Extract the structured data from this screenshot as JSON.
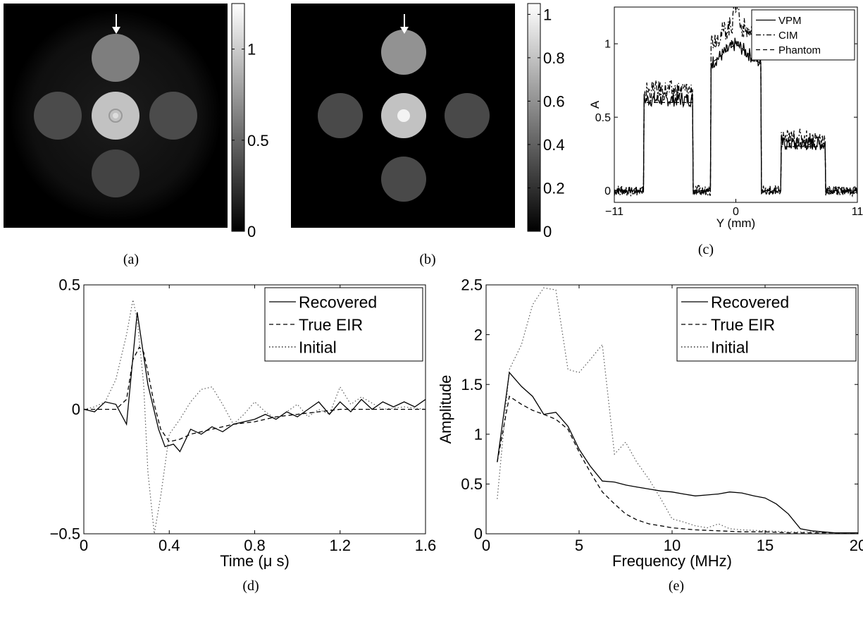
{
  "images": {
    "a": {
      "caption": "(a)",
      "marker": "Y",
      "colorbar_ticks": [
        "1",
        "0.5",
        "0"
      ],
      "colorbar_range": [
        0,
        1.25
      ],
      "disks": [
        {
          "name": "top",
          "intensity": 0.62
        },
        {
          "name": "left",
          "intensity": 0.37
        },
        {
          "name": "center",
          "intensity": 0.95
        },
        {
          "name": "right",
          "intensity": 0.37
        },
        {
          "name": "bottom",
          "intensity": 0.33
        }
      ]
    },
    "b": {
      "caption": "(b)",
      "marker": "Y",
      "colorbar_ticks": [
        "1",
        "0.8",
        "0.6",
        "0.4",
        "0.2",
        "0"
      ],
      "colorbar_range": [
        0,
        1.05
      ],
      "disks": [
        {
          "name": "top",
          "intensity": 0.6
        },
        {
          "name": "left",
          "intensity": 0.3
        },
        {
          "name": "center",
          "intensity": 0.8
        },
        {
          "name": "center-core",
          "intensity": 1.0
        },
        {
          "name": "right",
          "intensity": 0.3
        },
        {
          "name": "bottom",
          "intensity": 0.3
        }
      ]
    }
  },
  "chart_data": [
    {
      "id": "c",
      "type": "line",
      "caption": "(c)",
      "xlabel": "Y (mm)",
      "ylabel": "A",
      "xlim": [
        -11,
        11
      ],
      "ylim": [
        -0.08,
        1.25
      ],
      "xticks": [
        {
          "v": -11,
          "label": "−11"
        },
        {
          "v": 0,
          "label": "0"
        },
        {
          "v": 11,
          "label": "11"
        }
      ],
      "yticks": [
        {
          "v": 0,
          "label": "0"
        },
        {
          "v": 0.5,
          "label": "0.5"
        },
        {
          "v": 1,
          "label": "1"
        }
      ],
      "legend": "top-right",
      "series": [
        {
          "name": "VPM",
          "dash": "solid",
          "noise": 0.03,
          "levels": [
            0,
            0.62,
            0,
            1.0,
            0,
            0.32
          ]
        },
        {
          "name": "CIM",
          "dash": "dashdot",
          "noise": 0.045,
          "levels": [
            0,
            0.68,
            0,
            1.15,
            0,
            0.35
          ]
        },
        {
          "name": "Phantom",
          "dash": "dashed",
          "noise": 0,
          "levels": [
            0,
            0.6,
            0,
            1.0,
            0,
            0.3
          ]
        }
      ]
    },
    {
      "id": "d",
      "type": "line",
      "caption": "(d)",
      "xlabel": "Time (μ s)",
      "ylabel": "",
      "xlim": [
        0,
        1.6
      ],
      "ylim": [
        -0.5,
        0.5
      ],
      "xticks": [
        {
          "v": 0,
          "label": "0"
        },
        {
          "v": 0.4,
          "label": "0.4"
        },
        {
          "v": 0.8,
          "label": "0.8"
        },
        {
          "v": 1.2,
          "label": "1.2"
        },
        {
          "v": 1.6,
          "label": "1.6"
        }
      ],
      "yticks": [
        {
          "v": -0.5,
          "label": "−0.5"
        },
        {
          "v": 0,
          "label": "0"
        },
        {
          "v": 0.5,
          "label": "0.5"
        }
      ],
      "legend": "top-right",
      "series": [
        {
          "name": "Recovered",
          "dash": "solid",
          "x": [
            0,
            0.05,
            0.1,
            0.15,
            0.2,
            0.25,
            0.3,
            0.35,
            0.38,
            0.42,
            0.45,
            0.5,
            0.55,
            0.6,
            0.65,
            0.7,
            0.75,
            0.8,
            0.85,
            0.9,
            0.95,
            1.0,
            1.05,
            1.1,
            1.15,
            1.2,
            1.25,
            1.3,
            1.35,
            1.4,
            1.45,
            1.5,
            1.55,
            1.6
          ],
          "y": [
            0,
            -0.01,
            0.03,
            0.02,
            -0.06,
            0.39,
            0.1,
            -0.08,
            -0.15,
            -0.14,
            -0.17,
            -0.08,
            -0.1,
            -0.07,
            -0.09,
            -0.06,
            -0.05,
            -0.04,
            -0.02,
            -0.04,
            -0.01,
            -0.03,
            0,
            0.03,
            -0.02,
            0.03,
            -0.01,
            0.04,
            0,
            0.03,
            0.01,
            0.03,
            0.01,
            0.04
          ]
        },
        {
          "name": "True EIR",
          "dash": "dashed",
          "x": [
            0,
            0.1,
            0.15,
            0.2,
            0.23,
            0.26,
            0.28,
            0.3,
            0.33,
            0.36,
            0.4,
            0.45,
            0.5,
            0.6,
            0.7,
            0.8,
            0.9,
            1.0,
            1.1,
            1.2,
            1.3,
            1.4,
            1.5,
            1.6
          ],
          "y": [
            0,
            0,
            0,
            0.04,
            0.2,
            0.25,
            0.23,
            0.15,
            0.02,
            -0.08,
            -0.13,
            -0.12,
            -0.1,
            -0.08,
            -0.06,
            -0.05,
            -0.03,
            -0.02,
            -0.01,
            0,
            0,
            0,
            0,
            0
          ]
        },
        {
          "name": "Initial",
          "dash": "dotted",
          "x": [
            0,
            0.05,
            0.1,
            0.15,
            0.2,
            0.23,
            0.25,
            0.28,
            0.3,
            0.33,
            0.36,
            0.4,
            0.45,
            0.5,
            0.55,
            0.6,
            0.65,
            0.7,
            0.75,
            0.8,
            0.85,
            0.9,
            0.95,
            1.0,
            1.05,
            1.1,
            1.15,
            1.2,
            1.25,
            1.3,
            1.4,
            1.5,
            1.6
          ],
          "y": [
            0,
            0.01,
            0.03,
            0.12,
            0.3,
            0.44,
            0.36,
            0.1,
            -0.25,
            -0.5,
            -0.35,
            -0.1,
            -0.04,
            0.03,
            0.08,
            0.09,
            0.02,
            -0.06,
            -0.02,
            0.03,
            -0.01,
            -0.04,
            -0.01,
            0.02,
            -0.03,
            0,
            -0.02,
            0.09,
            0.02,
            0.05,
            0,
            0.01,
            0
          ]
        }
      ]
    },
    {
      "id": "e",
      "type": "line",
      "caption": "(e)",
      "xlabel": "Frequency (MHz)",
      "ylabel": "Amplitude",
      "xlim": [
        0,
        20
      ],
      "ylim": [
        0,
        2.5
      ],
      "xticks": [
        {
          "v": 0,
          "label": "0"
        },
        {
          "v": 5,
          "label": "5"
        },
        {
          "v": 10,
          "label": "10"
        },
        {
          "v": 15,
          "label": "15"
        },
        {
          "v": 20,
          "label": "20"
        }
      ],
      "yticks": [
        {
          "v": 0,
          "label": "0"
        },
        {
          "v": 0.5,
          "label": "0.5"
        },
        {
          "v": 1,
          "label": "1"
        },
        {
          "v": 1.5,
          "label": "1.5"
        },
        {
          "v": 2,
          "label": "2"
        },
        {
          "v": 2.5,
          "label": "2.5"
        }
      ],
      "legend": "top-right",
      "series": [
        {
          "name": "Recovered",
          "dash": "solid",
          "x": [
            0.6,
            1.25,
            1.9,
            2.5,
            3.1,
            3.75,
            4.4,
            5.0,
            5.6,
            6.25,
            6.9,
            7.5,
            8.1,
            8.75,
            9.4,
            10.0,
            10.6,
            11.25,
            11.9,
            12.5,
            13.1,
            13.75,
            14.4,
            15.0,
            15.6,
            16.25,
            16.9,
            17.5,
            18.1,
            18.75,
            19.4,
            20.0
          ],
          "y": [
            0.72,
            1.62,
            1.48,
            1.38,
            1.2,
            1.22,
            1.08,
            0.85,
            0.68,
            0.53,
            0.52,
            0.49,
            0.47,
            0.45,
            0.43,
            0.42,
            0.4,
            0.38,
            0.39,
            0.4,
            0.42,
            0.41,
            0.38,
            0.36,
            0.3,
            0.2,
            0.05,
            0.03,
            0.02,
            0.01,
            0.01,
            0.01
          ]
        },
        {
          "name": "True EIR",
          "dash": "dashed",
          "x": [
            0.6,
            1.25,
            1.9,
            2.5,
            3.1,
            3.75,
            4.4,
            5.0,
            5.6,
            6.25,
            6.9,
            7.5,
            8.1,
            8.75,
            9.4,
            10.0,
            10.6,
            11.25,
            12.5,
            13.75,
            15.0,
            16.25,
            17.5,
            18.75,
            20.0
          ],
          "y": [
            0.72,
            1.38,
            1.3,
            1.24,
            1.2,
            1.15,
            1.05,
            0.82,
            0.62,
            0.42,
            0.3,
            0.2,
            0.14,
            0.1,
            0.08,
            0.06,
            0.05,
            0.04,
            0.03,
            0.02,
            0.02,
            0.01,
            0.01,
            0.01,
            0.01
          ]
        },
        {
          "name": "Initial",
          "dash": "dotted",
          "x": [
            0.6,
            1.25,
            1.9,
            2.5,
            3.1,
            3.75,
            4.4,
            5.0,
            5.6,
            6.25,
            6.9,
            7.5,
            8.1,
            8.75,
            9.4,
            10.0,
            10.6,
            11.25,
            11.9,
            12.5,
            13.1,
            13.75,
            15.0,
            16.25,
            17.5,
            18.75,
            20.0
          ],
          "y": [
            0.35,
            1.65,
            1.9,
            2.3,
            2.47,
            2.45,
            1.65,
            1.62,
            1.75,
            1.9,
            0.8,
            0.92,
            0.72,
            0.55,
            0.35,
            0.15,
            0.12,
            0.08,
            0.06,
            0.1,
            0.05,
            0.04,
            0.03,
            0.02,
            0.02,
            0.01,
            0.01
          ]
        }
      ]
    }
  ]
}
